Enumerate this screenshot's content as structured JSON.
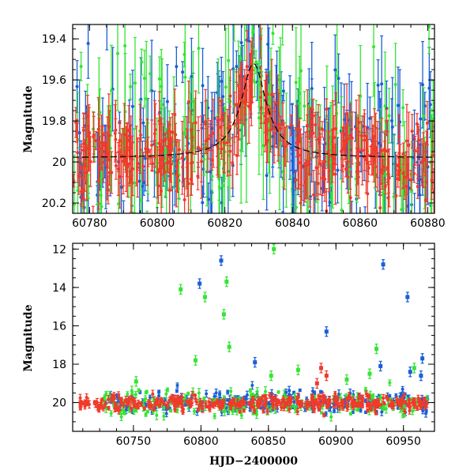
{
  "chart_data": [
    {
      "type": "scatter",
      "title": "",
      "xlabel": "",
      "ylabel": "Magnitude",
      "xlim": [
        60775,
        60882
      ],
      "ylim": [
        20.25,
        19.33
      ],
      "y_inverted": true,
      "xticks": [
        60780,
        60800,
        60820,
        60840,
        60860,
        60880
      ],
      "yticks": [
        19.4,
        19.6,
        19.8,
        20,
        20.2
      ],
      "xtick_labels": [
        "60780",
        "60800",
        "60820",
        "60840",
        "60860",
        "60880"
      ],
      "ytick_labels": [
        "19.4",
        "19.6",
        "19.8",
        "20",
        "20.2"
      ],
      "series": [
        {
          "name": "blue",
          "color": "#1a5fd6",
          "x_range": [
            60775,
            60882
          ],
          "baseline": 20.0,
          "scatter": 0.22,
          "err": [
            0.04,
            0.26
          ],
          "n": 230,
          "seed": 11
        },
        {
          "name": "green",
          "color": "#33e633",
          "x_range": [
            60775,
            60882
          ],
          "baseline": 20.0,
          "scatter": 0.26,
          "err": [
            0.05,
            0.3
          ],
          "n": 190,
          "seed": 23
        },
        {
          "name": "red",
          "color": "#f03a2a",
          "x_range": [
            60775,
            60882
          ],
          "baseline": 20.0,
          "scatter": 0.1,
          "err": [
            0.03,
            0.18
          ],
          "n": 340,
          "seed": 37
        }
      ],
      "model": {
        "baseline": 19.98,
        "peak_x": 60828.5,
        "peak_y": 19.52,
        "width": 4.5
      }
    },
    {
      "type": "scatter",
      "title": "",
      "xlabel": "HJD−2400000",
      "ylabel": "Magnitude",
      "xlim": [
        60705,
        60973
      ],
      "ylim": [
        21.5,
        11.7
      ],
      "y_inverted": true,
      "xticks": [
        60750,
        60800,
        60850,
        60900,
        60950
      ],
      "yticks": [
        12,
        14,
        16,
        18,
        20
      ],
      "xtick_labels": [
        "60750",
        "60800",
        "60850",
        "60900",
        "60950"
      ],
      "ytick_labels": [
        "12",
        "14",
        "16",
        "18",
        "20"
      ],
      "series": [
        {
          "name": "blue",
          "color": "#1a5fd6",
          "x_range": [
            60728,
            60968
          ],
          "baseline": 20.0,
          "scatter": 0.28,
          "err": [
            0.06,
            0.22
          ],
          "n": 260,
          "seed": 51
        },
        {
          "name": "green",
          "color": "#33e633",
          "x_range": [
            60728,
            60968
          ],
          "baseline": 20.05,
          "scatter": 0.35,
          "err": [
            0.06,
            0.25
          ],
          "n": 200,
          "seed": 63
        },
        {
          "name": "red",
          "color": "#f03a2a",
          "x_range": [
            60710,
            60968
          ],
          "baseline": 20.02,
          "scatter": 0.2,
          "err": [
            0.05,
            0.2
          ],
          "n": 380,
          "seed": 77
        }
      ],
      "outliers": [
        {
          "series": "blue",
          "x": 60815,
          "y": 12.6
        },
        {
          "series": "green",
          "x": 60854,
          "y": 12.0
        },
        {
          "series": "blue",
          "x": 60935,
          "y": 12.8
        },
        {
          "series": "blue",
          "x": 60799,
          "y": 13.8
        },
        {
          "series": "green",
          "x": 60819,
          "y": 13.7
        },
        {
          "series": "green",
          "x": 60785,
          "y": 14.1
        },
        {
          "series": "green",
          "x": 60803,
          "y": 14.5
        },
        {
          "series": "blue",
          "x": 60953,
          "y": 14.5
        },
        {
          "series": "green",
          "x": 60817,
          "y": 15.4
        },
        {
          "series": "blue",
          "x": 60893,
          "y": 16.3
        },
        {
          "series": "green",
          "x": 60821,
          "y": 17.1
        },
        {
          "series": "green",
          "x": 60930,
          "y": 17.2
        },
        {
          "series": "blue",
          "x": 60964,
          "y": 17.7
        },
        {
          "series": "green",
          "x": 60796,
          "y": 17.8
        },
        {
          "series": "blue",
          "x": 60840,
          "y": 17.9
        },
        {
          "series": "blue",
          "x": 60933,
          "y": 18.1
        },
        {
          "series": "green",
          "x": 60958,
          "y": 18.2
        },
        {
          "series": "blue",
          "x": 60955,
          "y": 18.4
        },
        {
          "series": "green",
          "x": 60872,
          "y": 18.3
        },
        {
          "series": "green",
          "x": 60925,
          "y": 18.5
        },
        {
          "series": "blue",
          "x": 60963,
          "y": 18.6
        },
        {
          "series": "green",
          "x": 60852,
          "y": 18.6
        },
        {
          "series": "green",
          "x": 60908,
          "y": 18.8
        },
        {
          "series": "green",
          "x": 60752,
          "y": 18.9
        },
        {
          "series": "red",
          "x": 60889,
          "y": 18.2
        },
        {
          "series": "red",
          "x": 60893,
          "y": 18.6
        },
        {
          "series": "red",
          "x": 60886,
          "y": 19.0
        }
      ]
    }
  ]
}
